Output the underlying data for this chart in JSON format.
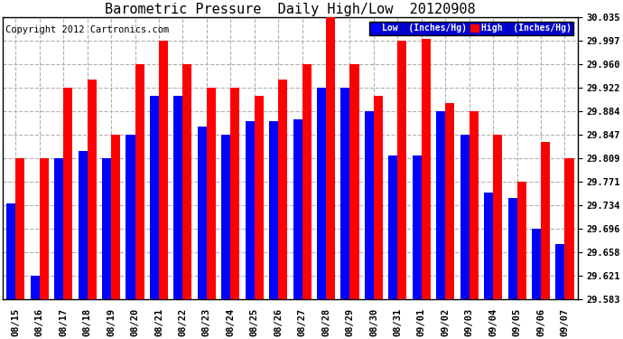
{
  "title": "Barometric Pressure  Daily High/Low  20120908",
  "copyright": "Copyright 2012 Cartronics.com",
  "legend_low": "Low  (Inches/Hg)",
  "legend_high": "High  (Inches/Hg)",
  "categories": [
    "08/15",
    "08/16",
    "08/17",
    "08/18",
    "08/19",
    "08/20",
    "08/21",
    "08/22",
    "08/23",
    "08/24",
    "08/25",
    "08/26",
    "08/27",
    "08/28",
    "08/29",
    "08/30",
    "08/31",
    "09/01",
    "09/02",
    "09/03",
    "09/04",
    "09/05",
    "09/06",
    "09/07"
  ],
  "low_values": [
    29.737,
    29.621,
    29.809,
    29.82,
    29.809,
    29.847,
    29.909,
    29.909,
    29.86,
    29.847,
    29.868,
    29.868,
    29.871,
    29.922,
    29.922,
    29.884,
    29.813,
    29.813,
    29.884,
    29.847,
    29.754,
    29.745,
    29.696,
    29.671
  ],
  "high_values": [
    29.809,
    29.809,
    29.922,
    29.935,
    29.847,
    29.96,
    29.997,
    29.96,
    29.922,
    29.922,
    29.909,
    29.935,
    29.96,
    30.035,
    29.96,
    29.909,
    29.997,
    30.0,
    29.897,
    29.884,
    29.847,
    29.771,
    29.835,
    29.809
  ],
  "ylim_min": 29.583,
  "ylim_max": 30.035,
  "yticks": [
    29.583,
    29.621,
    29.658,
    29.696,
    29.734,
    29.771,
    29.809,
    29.847,
    29.884,
    29.922,
    29.96,
    29.997,
    30.035
  ],
  "bar_width": 0.38,
  "low_color": "#0000ff",
  "high_color": "#ff0000",
  "bg_color": "#ffffff",
  "grid_color": "#b0b0b0",
  "title_color": "#000000",
  "title_fontsize": 11,
  "copyright_fontsize": 7.5,
  "tick_fontsize": 7.5
}
